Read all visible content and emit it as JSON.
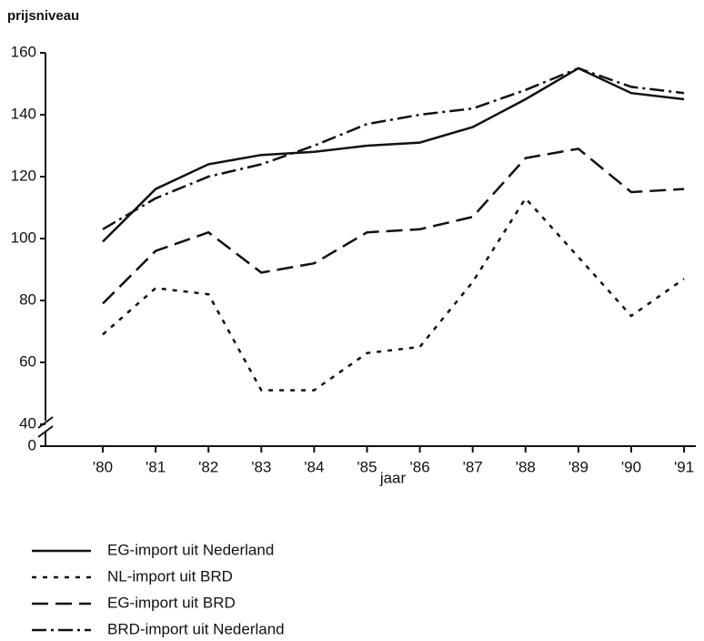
{
  "chart_data": {
    "type": "line",
    "y_axis_label": "prijsniveau",
    "x_axis_label": "jaar",
    "categories": [
      "'80",
      "'81",
      "'82",
      "'83",
      "'84",
      "'85",
      "'86",
      "'87",
      "'88",
      "'89",
      "'90",
      "'91"
    ],
    "series": [
      {
        "name": "EG-import uit Nederland",
        "color": "#111111",
        "style": "solid",
        "values": [
          99,
          116,
          124,
          127,
          128,
          130,
          131,
          136,
          145,
          155,
          147,
          145
        ]
      },
      {
        "name": "NL-import uit BRD",
        "color": "#111111",
        "style": "dotted",
        "values": [
          69,
          84,
          82,
          51,
          51,
          63,
          65,
          86,
          113,
          94,
          75,
          87
        ]
      },
      {
        "name": "EG-import uit BRD",
        "color": "#111111",
        "style": "dashed",
        "values": [
          79,
          96,
          102,
          89,
          92,
          102,
          103,
          107,
          126,
          129,
          115,
          116
        ]
      },
      {
        "name": "BRD-import uit Nederland",
        "color": "#111111",
        "style": "dashdot",
        "values": [
          103,
          113,
          120,
          124,
          130,
          137,
          140,
          142,
          148,
          155,
          149,
          147
        ]
      }
    ],
    "ylim": [
      40,
      160
    ],
    "yticks": [
      0,
      40,
      60,
      80,
      100,
      120,
      140,
      160
    ],
    "axis_break": true
  }
}
